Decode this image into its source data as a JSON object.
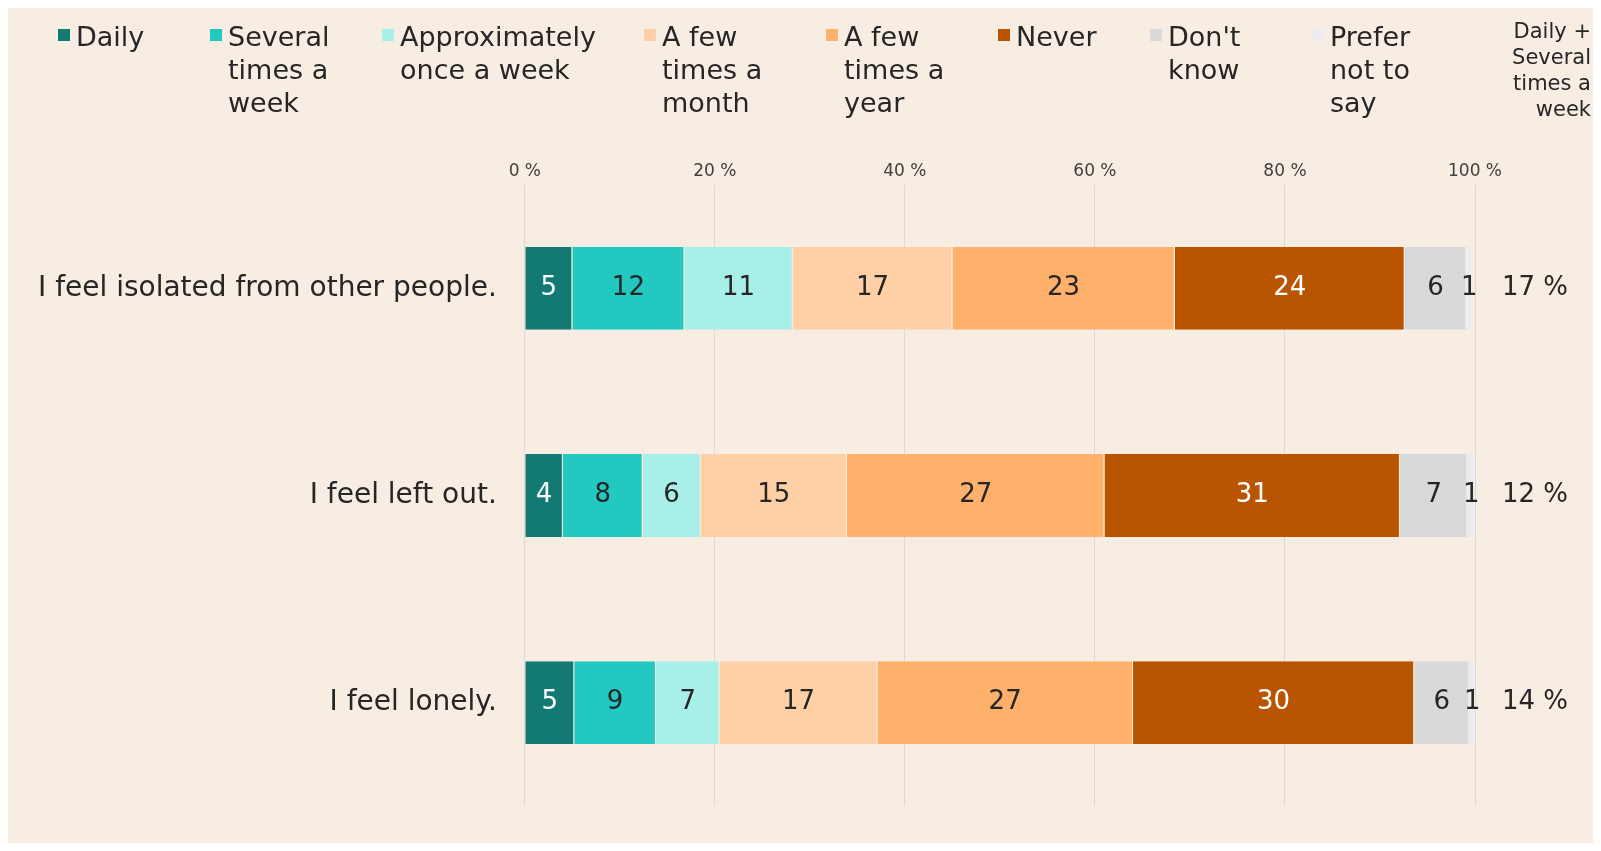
{
  "chart_data": {
    "type": "bar",
    "orientation": "horizontal",
    "stacked": true,
    "grid": "x",
    "legend": "top",
    "categories": [
      "I feel isolated from other people.",
      "I feel left out.",
      "I feel lonely."
    ],
    "series": [
      {
        "name": "Daily",
        "color": "#137a73",
        "values": [
          5.0,
          4.0,
          5.2
        ],
        "value_labels": [
          "5",
          "4",
          "5"
        ]
      },
      {
        "name": "Several times a week",
        "color": "#22c9c0",
        "values": [
          11.8,
          8.4,
          8.6
        ],
        "value_labels": [
          "12",
          "8",
          "9"
        ]
      },
      {
        "name": "Approximately once a week",
        "color": "#a8efe9",
        "values": [
          11.4,
          6.1,
          6.7
        ],
        "value_labels": [
          "11",
          "6",
          "7"
        ]
      },
      {
        "name": "A few times a month",
        "color": "#ffd0a6",
        "values": [
          16.8,
          15.4,
          16.6
        ],
        "value_labels": [
          "17",
          "15",
          "17"
        ]
      },
      {
        "name": "A few times a year",
        "color": "#ffb06a",
        "values": [
          23.4,
          27.1,
          26.9
        ],
        "value_labels": [
          "23",
          "27",
          "27"
        ]
      },
      {
        "name": "Never",
        "color": "#b95500",
        "values": [
          24.2,
          31.1,
          29.6
        ],
        "value_labels": [
          "24",
          "31",
          "30"
        ]
      },
      {
        "name": "Don't know",
        "color": "#d9d9d9",
        "values": [
          6.5,
          7.1,
          5.8
        ],
        "value_labels": [
          "6",
          "7",
          "6"
        ]
      },
      {
        "name": "Prefer not to say",
        "color": "#ececef",
        "values": [
          0.6,
          0.8,
          0.6
        ],
        "value_labels": [
          "1",
          "1",
          "1"
        ]
      }
    ],
    "xlim": [
      0,
      100
    ],
    "xticks": [
      {
        "value": 0,
        "label": "0 %"
      },
      {
        "value": 20,
        "label": "20 %"
      },
      {
        "value": 40,
        "label": "40 %"
      },
      {
        "value": 60,
        "label": "60 %"
      },
      {
        "value": 80,
        "label": "80 %"
      },
      {
        "value": 100,
        "label": "100 %"
      }
    ],
    "annotations": [
      "Daily + Several times a week",
      "17 %",
      "12 %",
      "14 %"
    ]
  }
}
